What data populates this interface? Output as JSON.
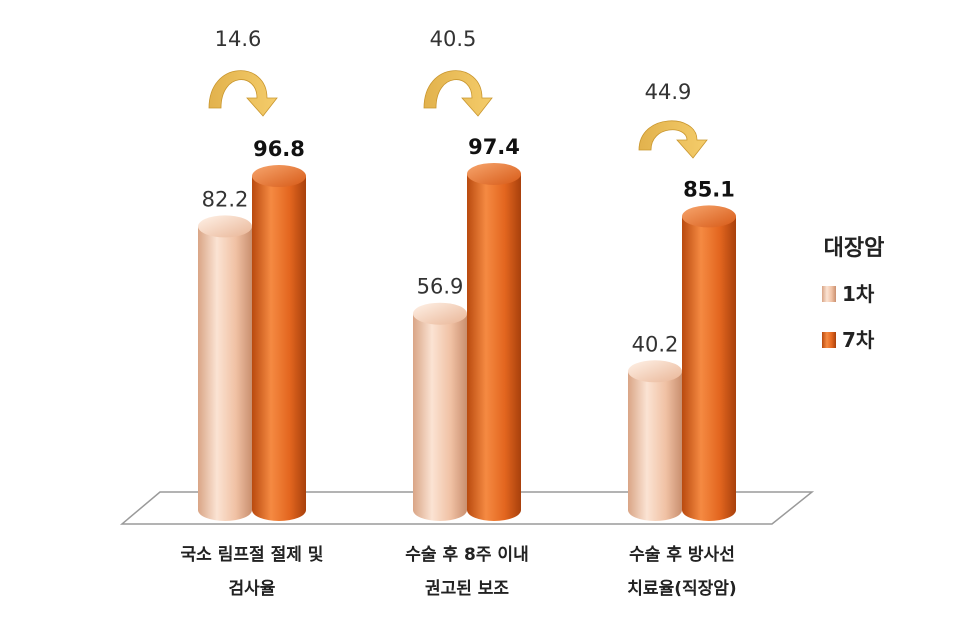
{
  "chart_data": {
    "type": "bar",
    "categories": [
      [
        "국소 림프절 절제 및",
        "검사율"
      ],
      [
        "수술 후 8주 이내",
        "권고된 보조"
      ],
      [
        "수술 후 방사선",
        "치료율(직장암)"
      ]
    ],
    "series": [
      {
        "name": "1차",
        "values": [
          82.2,
          56.9,
          40.2
        ],
        "color": "#f3c8ae"
      },
      {
        "name": "7차",
        "values": [
          96.8,
          97.4,
          85.1
        ],
        "color": "#e0641e"
      }
    ],
    "changes": [
      "14.6",
      "40.5",
      "44.9"
    ],
    "legend": {
      "title": "대장암",
      "position": "right"
    },
    "ylim": [
      0,
      100
    ],
    "grid": false,
    "style": "3d-cylinder"
  }
}
